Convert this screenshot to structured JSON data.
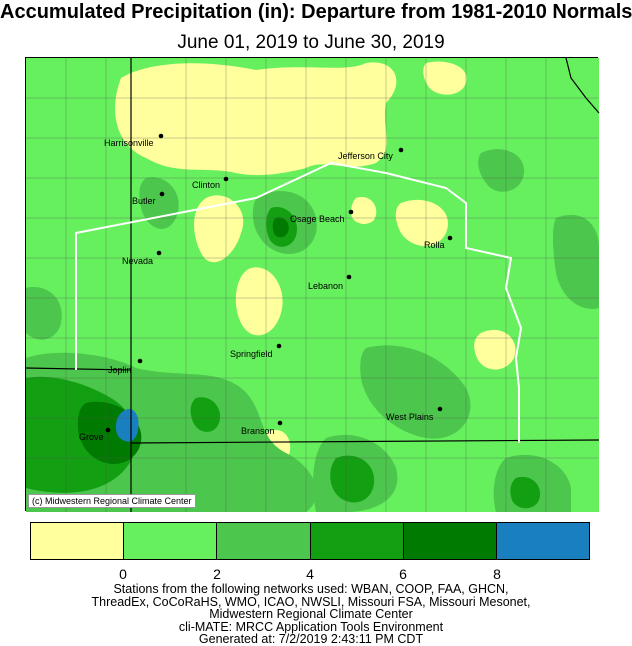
{
  "title": "Accumulated Precipitation (in): Departure from 1981-2010 Normals",
  "subtitle": "June 01, 2019 to June 30, 2019",
  "credit": "(c) Midwestern Regional Climate Center",
  "colors": {
    "below_0": "#ffff9e",
    "0_2": "#66f05e",
    "2_4": "#4cc64c",
    "4_6": "#12a012",
    "6_8": "#007a00",
    "above_8": "#1a7fbf",
    "state_border": "#ffffff",
    "county_lines": "#555555"
  },
  "legend": {
    "swatches": [
      "#ffff9e",
      "#66f05e",
      "#4cc64c",
      "#12a012",
      "#007a00",
      "#1a7fbf"
    ],
    "tick_labels": [
      "0",
      "2",
      "4",
      "6",
      "8"
    ]
  },
  "cities": [
    {
      "name": "Harrisonville"
    },
    {
      "name": "Jefferson City"
    },
    {
      "name": "Clinton"
    },
    {
      "name": "Butler"
    },
    {
      "name": "Osage Beach"
    },
    {
      "name": "Rolla"
    },
    {
      "name": "Nevada"
    },
    {
      "name": "Lebanon"
    },
    {
      "name": "Springfield"
    },
    {
      "name": "Joplin"
    },
    {
      "name": "West Plains"
    },
    {
      "name": "Branson"
    },
    {
      "name": "Grove"
    }
  ],
  "footer": [
    "Stations from the following networks used: WBAN, COOP, FAA, GHCN,",
    "ThreadEx, CoCoRaHS, WMO, ICAO, NWSLI, Missouri FSA, Missouri Mesonet,",
    "Midwestern Regional Climate Center",
    "cli-MATE: MRCC Application Tools Environment",
    "Generated at: 7/2/2019 2:43:11 PM CDT"
  ]
}
